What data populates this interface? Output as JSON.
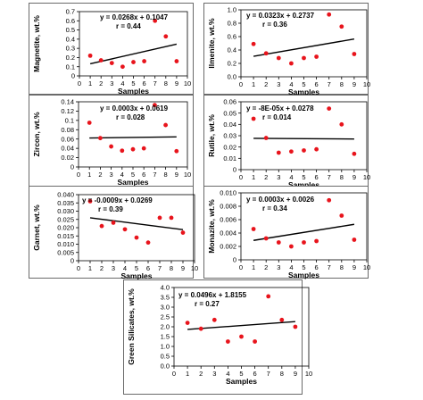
{
  "chart_data": [
    {
      "type": "scatter",
      "ylabel": "Magnetite, wt.%",
      "xlabel": "Samples",
      "xlim": [
        0,
        10
      ],
      "ylim": [
        0,
        0.7
      ],
      "yticks": [
        "0",
        "0.1",
        "0.2",
        "0.3",
        "0.4",
        "0.5",
        "0.6",
        "0.7"
      ],
      "xticks": [
        "0",
        "1",
        "2",
        "3",
        "4",
        "5",
        "6",
        "7",
        "8",
        "9",
        "10"
      ],
      "equation": "y = 0.0268x + 0.1047",
      "r_text": "r = 0.44",
      "trend": {
        "slope": 0.0268,
        "intercept": 0.1047,
        "x": [
          1,
          9
        ]
      },
      "x": [
        1,
        2,
        3,
        4,
        5,
        6,
        7,
        8,
        9
      ],
      "y": [
        0.22,
        0.17,
        0.14,
        0.1,
        0.15,
        0.16,
        0.6,
        0.43,
        0.16
      ]
    },
    {
      "type": "scatter",
      "ylabel": "Ilmenite, wt.%",
      "xlabel": "Samples",
      "xlim": [
        0,
        10
      ],
      "ylim": [
        0,
        1.0
      ],
      "yticks": [
        "0.0",
        "0.2",
        "0.4",
        "0.6",
        "0.8",
        "1.0"
      ],
      "xticks": [
        "0",
        "1",
        "2",
        "3",
        "4",
        "5",
        "6",
        "7",
        "8",
        "9",
        "10"
      ],
      "equation": "y = 0.0323x + 0.2737",
      "r_text": "r = 0.36",
      "trend": {
        "slope": 0.0323,
        "intercept": 0.2737,
        "x": [
          1,
          9
        ]
      },
      "x": [
        1,
        2,
        3,
        4,
        5,
        6,
        7,
        8,
        9
      ],
      "y": [
        0.49,
        0.35,
        0.28,
        0.2,
        0.28,
        0.3,
        0.93,
        0.75,
        0.34
      ]
    },
    {
      "type": "scatter",
      "ylabel": "Zircon, wt.%",
      "xlabel": "Samples",
      "xlim": [
        0,
        10
      ],
      "ylim": [
        0,
        0.14
      ],
      "yticks": [
        "0",
        "0.02",
        "0.04",
        "0.06",
        "0.08",
        "0.1",
        "0.12",
        "0.14"
      ],
      "xticks": [
        "0",
        "1",
        "2",
        "3",
        "4",
        "5",
        "6",
        "7",
        "8",
        "9",
        "10"
      ],
      "equation": "y = 0.0003x + 0.0619",
      "r_text": "r = 0.028",
      "trend": {
        "slope": 0.0003,
        "intercept": 0.0619,
        "x": [
          1,
          9
        ]
      },
      "x": [
        1,
        2,
        3,
        4,
        5,
        6,
        7,
        8,
        9
      ],
      "y": [
        0.095,
        0.062,
        0.044,
        0.035,
        0.038,
        0.04,
        0.133,
        0.09,
        0.034
      ]
    },
    {
      "type": "scatter",
      "ylabel": "Rutile, wt.%",
      "xlabel": "Samples",
      "xlim": [
        0,
        10
      ],
      "ylim": [
        0,
        0.06
      ],
      "yticks": [
        "0",
        "0.01",
        "0.02",
        "0.03",
        "0.04",
        "0.05",
        "0.06"
      ],
      "xticks": [
        "0",
        "1",
        "2",
        "3",
        "4",
        "5",
        "6",
        "7",
        "8",
        "9",
        "10"
      ],
      "equation": "y = -8E-05x + 0.0278",
      "r_text": "r = 0.014",
      "trend": {
        "slope": -8e-05,
        "intercept": 0.0278,
        "x": [
          1,
          9
        ]
      },
      "x": [
        1,
        2,
        3,
        4,
        5,
        6,
        7,
        8,
        9
      ],
      "y": [
        0.045,
        0.028,
        0.015,
        0.016,
        0.017,
        0.018,
        0.054,
        0.04,
        0.014
      ]
    },
    {
      "type": "scatter",
      "ylabel": "Garnet, wt.%",
      "xlabel": "Samples",
      "xlim": [
        0,
        10
      ],
      "ylim": [
        0,
        0.04
      ],
      "yticks": [
        "0",
        "0.005",
        "0.010",
        "0.015",
        "0.020",
        "0.025",
        "0.030",
        "0.035",
        "0.040"
      ],
      "xticks": [
        "0",
        "1",
        "2",
        "3",
        "4",
        "5",
        "6",
        "7",
        "8",
        "9",
        "10"
      ],
      "equation": "y = -0.0009x + 0.0269",
      "r_text": "r = 0.39",
      "trend": {
        "slope": -0.0009,
        "intercept": 0.0269,
        "x": [
          1,
          9
        ]
      },
      "x": [
        1,
        2,
        3,
        4,
        5,
        6,
        7,
        8,
        9
      ],
      "y": [
        0.036,
        0.021,
        0.023,
        0.019,
        0.014,
        0.011,
        0.026,
        0.026,
        0.017
      ]
    },
    {
      "type": "scatter",
      "ylabel": "Monazite, wt.%",
      "xlabel": "Samples",
      "xlim": [
        0,
        10
      ],
      "ylim": [
        0,
        0.01
      ],
      "yticks": [
        "0",
        "0.002",
        "0.004",
        "0.006",
        "0.008",
        "0.010"
      ],
      "xticks": [
        "0",
        "1",
        "2",
        "3",
        "4",
        "5",
        "6",
        "7",
        "8",
        "9",
        "10"
      ],
      "equation": "y = 0.0003x + 0.0026",
      "r_text": "r = 0.34",
      "trend": {
        "slope": 0.0003,
        "intercept": 0.0026,
        "x": [
          1,
          9
        ]
      },
      "x": [
        1,
        2,
        3,
        4,
        5,
        6,
        7,
        8,
        9
      ],
      "y": [
        0.0046,
        0.0032,
        0.0026,
        0.002,
        0.0026,
        0.0028,
        0.0089,
        0.0066,
        0.003
      ]
    },
    {
      "type": "scatter",
      "ylabel": "Green Silicates, wt.%",
      "xlabel": "Samples",
      "xlim": [
        0,
        10
      ],
      "ylim": [
        0,
        4.0
      ],
      "yticks": [
        "0.0",
        "0.5",
        "1.0",
        "1.5",
        "2.0",
        "2.5",
        "3.0",
        "3.5",
        "4.0"
      ],
      "xticks": [
        "0",
        "1",
        "2",
        "3",
        "4",
        "5",
        "6",
        "7",
        "8",
        "9",
        "10"
      ],
      "equation": "y = 0.0496x + 1.8155",
      "r_text": "r = 0.27",
      "trend": {
        "slope": 0.0496,
        "intercept": 1.8155,
        "x": [
          1,
          9
        ]
      },
      "x": [
        1,
        2,
        3,
        4,
        5,
        6,
        7,
        8,
        9
      ],
      "y": [
        2.2,
        1.9,
        2.35,
        1.25,
        1.5,
        1.25,
        3.55,
        2.35,
        2.0
      ]
    }
  ]
}
